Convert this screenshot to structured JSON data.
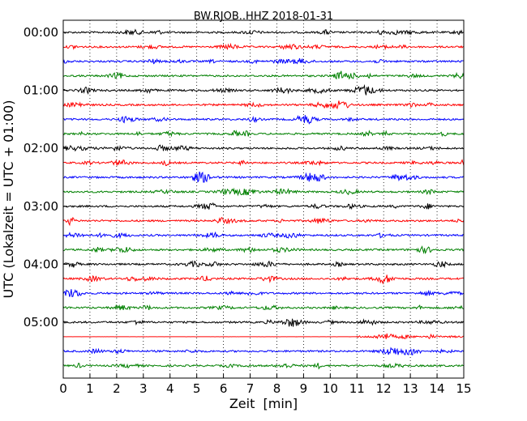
{
  "chart_data": {
    "type": "line",
    "title": "BW.RJOB..HHZ 2018-01-31",
    "xlabel": "Zeit  [min]",
    "ylabel": "UTC (Lokalzeit = UTC + 01:00)",
    "xlim": [
      0,
      15
    ],
    "x_ticks": [
      "0",
      "1",
      "2",
      "3",
      "4",
      "5",
      "6",
      "7",
      "8",
      "9",
      "10",
      "11",
      "12",
      "13",
      "14",
      "15"
    ],
    "y_tick_labels": [
      "00:00",
      "01:00",
      "02:00",
      "03:00",
      "04:00",
      "05:00"
    ],
    "grid": "vertical dotted",
    "series_colors": [
      "#000000",
      "#ff0000",
      "#0000ff",
      "#008000"
    ],
    "traces": [
      {
        "start": "00:00",
        "color": "#000000"
      },
      {
        "start": "00:15",
        "color": "#ff0000"
      },
      {
        "start": "00:30",
        "color": "#0000ff"
      },
      {
        "start": "00:45",
        "color": "#008000"
      },
      {
        "start": "01:00",
        "color": "#000000"
      },
      {
        "start": "01:15",
        "color": "#ff0000"
      },
      {
        "start": "01:30",
        "color": "#0000ff"
      },
      {
        "start": "01:45",
        "color": "#008000"
      },
      {
        "start": "02:00",
        "color": "#000000"
      },
      {
        "start": "02:15",
        "color": "#ff0000"
      },
      {
        "start": "02:30",
        "color": "#0000ff"
      },
      {
        "start": "02:45",
        "color": "#008000"
      },
      {
        "start": "03:00",
        "color": "#000000"
      },
      {
        "start": "03:15",
        "color": "#ff0000"
      },
      {
        "start": "03:30",
        "color": "#0000ff"
      },
      {
        "start": "03:45",
        "color": "#008000"
      },
      {
        "start": "04:00",
        "color": "#000000"
      },
      {
        "start": "04:15",
        "color": "#ff0000"
      },
      {
        "start": "04:30",
        "color": "#0000ff"
      },
      {
        "start": "04:45",
        "color": "#008000"
      },
      {
        "start": "05:00",
        "color": "#000000"
      },
      {
        "start": "05:15",
        "color": "#ff0000",
        "quiet_until_min": 11,
        "event_at_min": 12
      },
      {
        "start": "05:30",
        "color": "#0000ff",
        "event_at_min": 12.5
      },
      {
        "start": "05:45",
        "color": "#008000"
      }
    ]
  }
}
